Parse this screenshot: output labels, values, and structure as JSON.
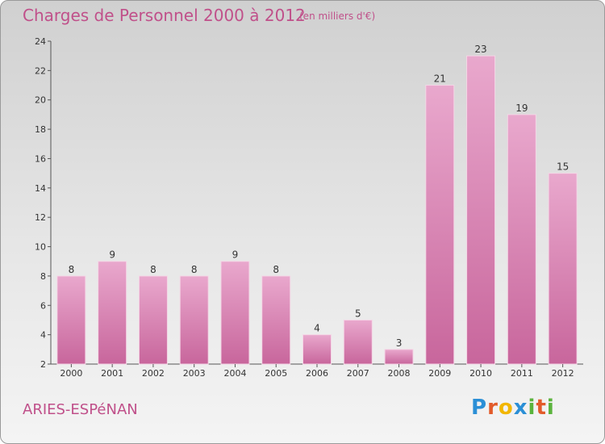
{
  "header": {
    "title": "Charges de Personnel 2000 à 2012",
    "subtitle": "(en milliers d'€)"
  },
  "footer": {
    "commune": "ARIES-ESPéNAN",
    "brand": "Proxiti",
    "brand_colors": [
      "#2b8fd6",
      "#e25b2a",
      "#f2b600",
      "#2b8fd6",
      "#5ab33c",
      "#e25b2a",
      "#5ab33c"
    ]
  },
  "chart_data": {
    "type": "bar",
    "categories": [
      "2000",
      "2001",
      "2002",
      "2003",
      "2004",
      "2005",
      "2006",
      "2007",
      "2008",
      "2009",
      "2010",
      "2011",
      "2012"
    ],
    "values": [
      8,
      9,
      8,
      8,
      9,
      8,
      4,
      5,
      3,
      21,
      23,
      19,
      15
    ],
    "data_labels": [
      "8",
      "9",
      "8",
      "8",
      "9",
      "8",
      "4",
      "5",
      "3",
      "21",
      "23",
      "19",
      "15"
    ],
    "ylim": [
      2,
      24
    ],
    "yticks": [
      2,
      4,
      6,
      8,
      10,
      12,
      14,
      16,
      18,
      20,
      22,
      24
    ],
    "xlabel": "",
    "ylabel": "",
    "grid": false,
    "bar_color": "#c8669c",
    "bar_color_light": "#e9a8cd"
  }
}
